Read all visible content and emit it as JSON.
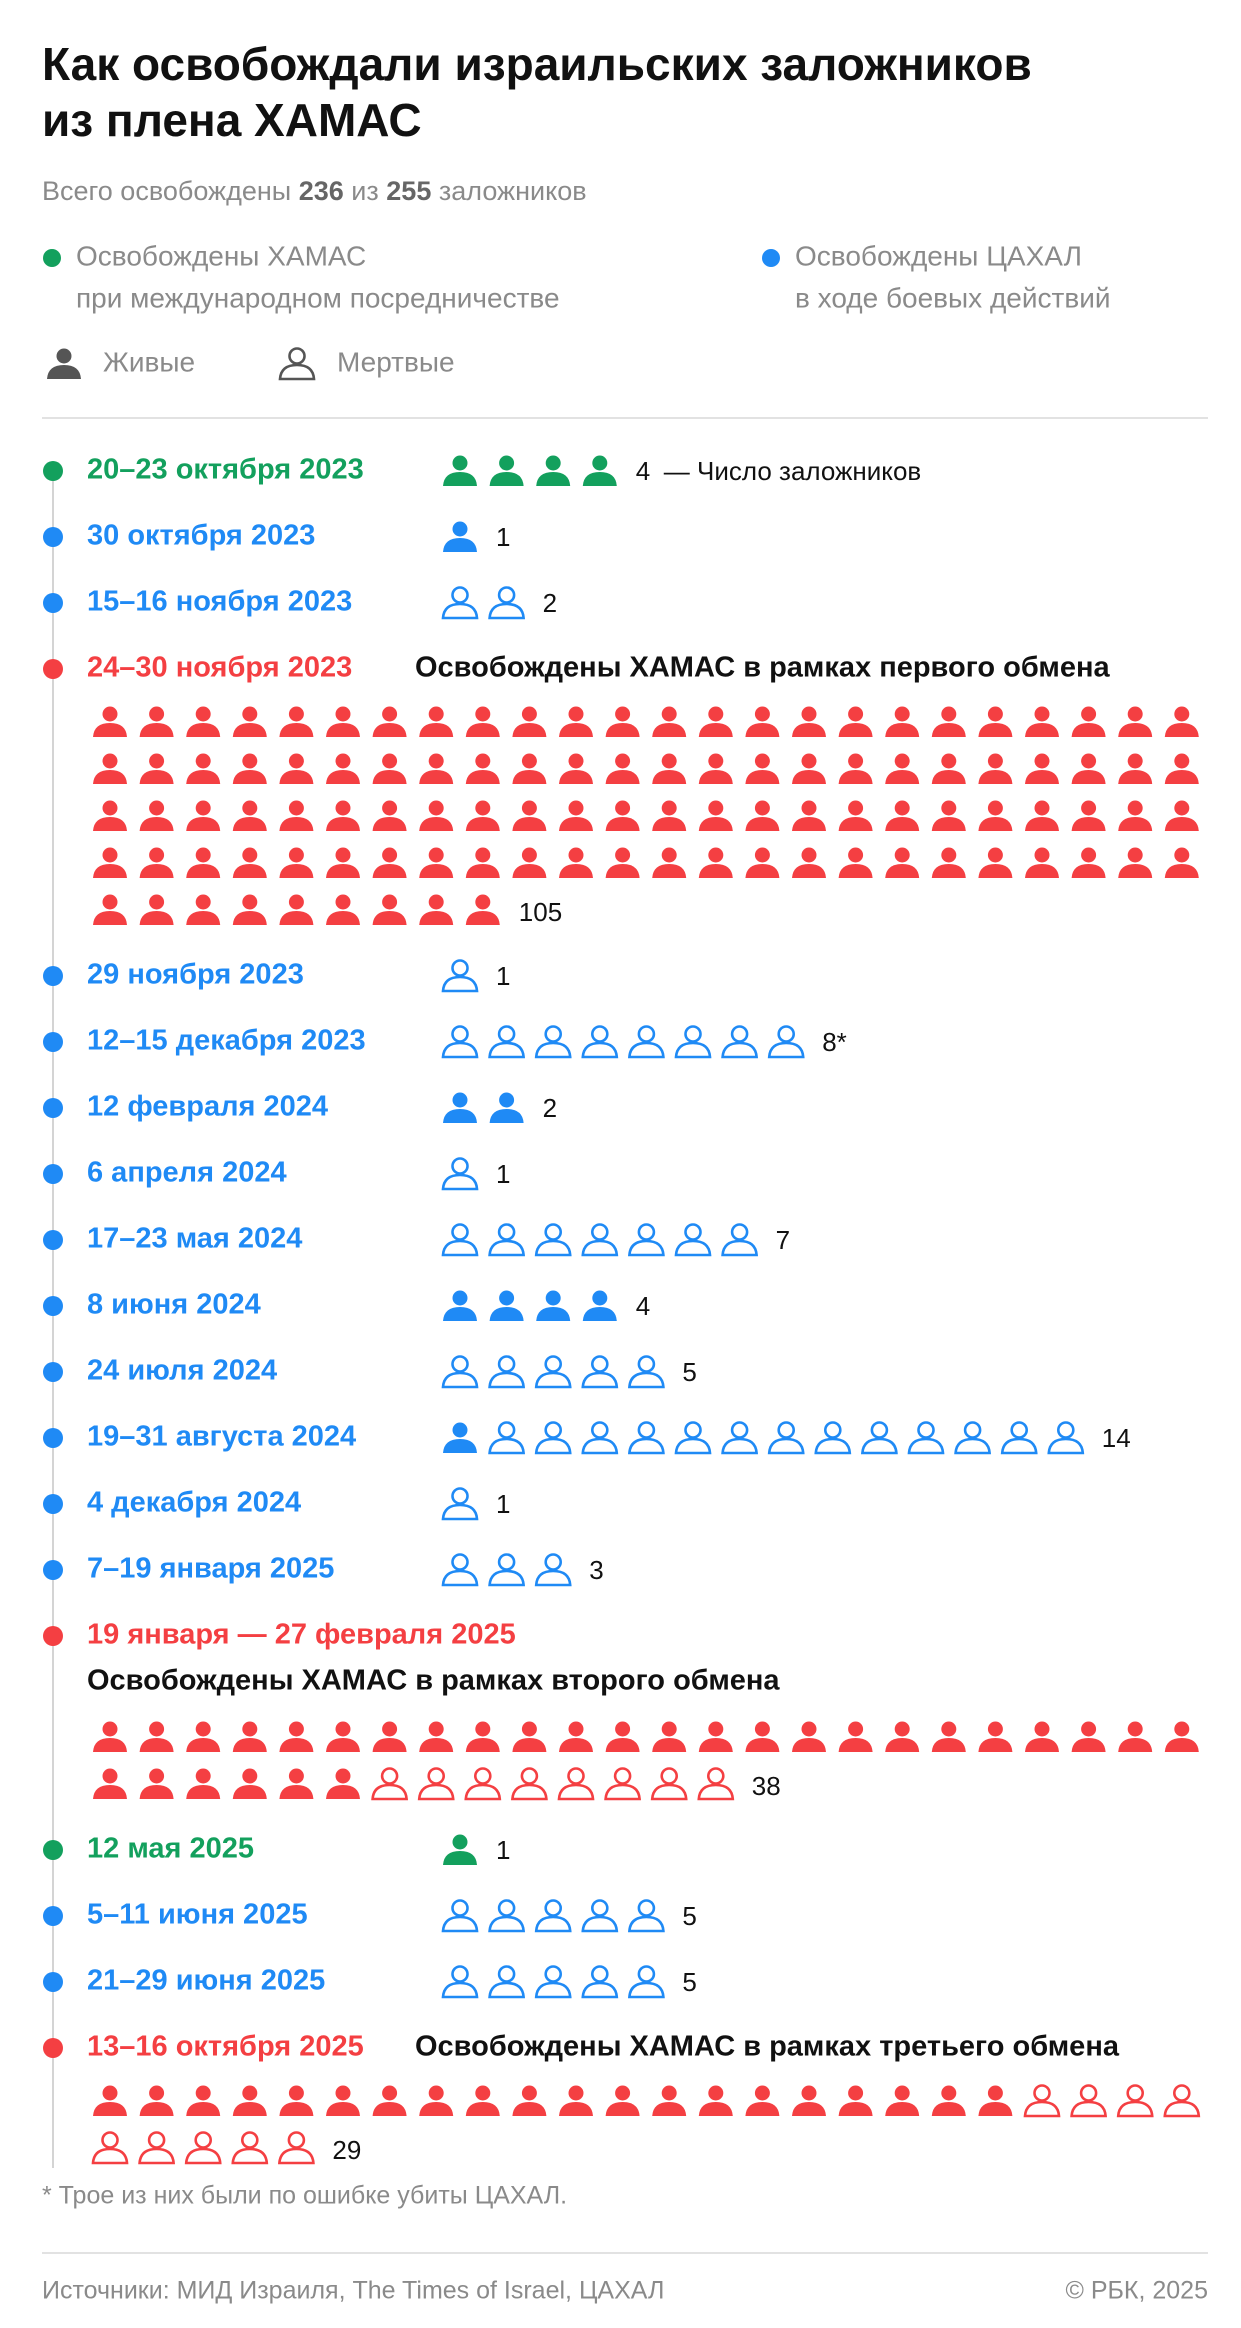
{
  "title": [
    "Как освобождали израильских заложников",
    "из плена ХАМАС"
  ],
  "subtitle": {
    "prefix": "Всего освобождены",
    "released": 236,
    "middle": "из",
    "total": 255,
    "suffix": "заложников"
  },
  "colors": {
    "hamas": "#13a05d",
    "idf": "#1f8af5",
    "exchange": "#f43f42",
    "legend_icon": "#555555"
  },
  "legend": {
    "hamas": [
      "Освобождены ХАМАС",
      "при международном посредничестве"
    ],
    "idf": [
      "Освобождены ЦАХАЛ",
      "в ходе боевых действий"
    ],
    "alive": "Живые",
    "dead": "Мертвые"
  },
  "annotation": "— Число заложников",
  "events": [
    {
      "date": "20–23 октября 2023",
      "group": "hamas",
      "alive": 4,
      "dead": 0,
      "count": 4
    },
    {
      "date": "30 октября 2023",
      "group": "idf",
      "alive": 1,
      "dead": 0,
      "count": 1
    },
    {
      "date": "15–16 ноября 2023",
      "group": "idf",
      "alive": 0,
      "dead": 2,
      "count": 2
    },
    {
      "date": "24–30 ноября 2023",
      "group": "exchange",
      "note": "Освобождены ХАМАС в рамках первого обмена",
      "alive": 105,
      "dead": 0,
      "count": 105
    },
    {
      "date": "29 ноября 2023",
      "group": "idf",
      "alive": 0,
      "dead": 1,
      "count": 1
    },
    {
      "date": "12–15 декабря 2023",
      "group": "idf",
      "alive": 0,
      "dead": 8,
      "count": {
        "value": 8,
        "label": "8*"
      }
    },
    {
      "date": "12 февраля 2024",
      "group": "idf",
      "alive": 2,
      "dead": 0,
      "count": 2
    },
    {
      "date": "6 апреля 2024",
      "group": "idf",
      "alive": 0,
      "dead": 1,
      "count": 1
    },
    {
      "date": "17–23 мая 2024",
      "group": "idf",
      "alive": 0,
      "dead": 7,
      "count": 7
    },
    {
      "date": "8 июня 2024",
      "group": "idf",
      "alive": 4,
      "dead": 0,
      "count": 4
    },
    {
      "date": "24 июля 2024",
      "group": "idf",
      "alive": 0,
      "dead": 5,
      "count": 5
    },
    {
      "date": "19–31 августа 2024",
      "group": "idf",
      "alive": 1,
      "dead": 13,
      "count": 14
    },
    {
      "date": "4 декабря 2024",
      "group": "idf",
      "alive": 0,
      "dead": 1,
      "count": 1
    },
    {
      "date": "7–19 января 2025",
      "group": "idf",
      "alive": 0,
      "dead": 3,
      "count": 3
    },
    {
      "date": "19 января — 27 февраля 2025",
      "group": "exchange",
      "note": "Освобождены ХАМАС в рамках второго обмена",
      "note_below": true,
      "alive": 30,
      "dead": 8,
      "count": 38
    },
    {
      "date": "12 мая 2025",
      "group": "hamas",
      "alive": 1,
      "dead": 0,
      "count": 1
    },
    {
      "date": "5–11 июня 2025",
      "group": "idf",
      "alive": 0,
      "dead": 5,
      "count": 5
    },
    {
      "date": "21–29 июня 2025",
      "group": "idf",
      "alive": 0,
      "dead": 5,
      "count": 5
    },
    {
      "date": "13–16 октября 2025",
      "group": "exchange",
      "note": "Освобождены ХАМАС в рамках третьего обмена",
      "alive": 20,
      "dead": 9,
      "count": 29
    }
  ],
  "footnote": "* Трое из них были по ошибке убиты ЦАХАЛ.",
  "sources": "Источники: МИД Израиля, The Times of Israel, ЦАХАЛ",
  "copyright": "© РБК, 2025"
}
